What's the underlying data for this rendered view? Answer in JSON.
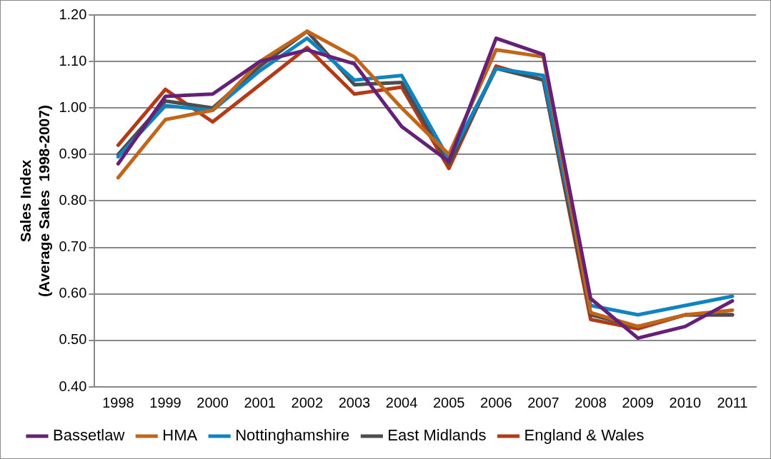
{
  "chart_data": {
    "type": "line",
    "ylabel": "Sales Index\n(Average Sales  1998-2007)",
    "categories": [
      "1998",
      "1999",
      "2000",
      "2001",
      "2002",
      "2003",
      "2004",
      "2005",
      "2006",
      "2007",
      "2008",
      "2009",
      "2010",
      "2011"
    ],
    "series": [
      {
        "name": "Bassetlaw",
        "color": "#652077",
        "values": [
          0.88,
          1.025,
          1.03,
          1.1,
          1.125,
          1.095,
          0.96,
          0.885,
          1.15,
          1.115,
          0.59,
          0.505,
          0.53,
          0.585
        ]
      },
      {
        "name": "HMA",
        "color": "#c0651a",
        "values": [
          0.85,
          0.975,
          0.995,
          1.1,
          1.165,
          1.11,
          1.0,
          0.9,
          1.125,
          1.11,
          0.56,
          0.53,
          0.555,
          0.565
        ]
      },
      {
        "name": "Nottinghamshire",
        "color": "#1084c0",
        "values": [
          0.895,
          1.005,
          0.995,
          1.08,
          1.15,
          1.06,
          1.07,
          0.89,
          1.085,
          1.07,
          0.575,
          0.555,
          0.575,
          0.595
        ]
      },
      {
        "name": "East Midlands",
        "color": "#4d4d4f",
        "values": [
          0.9,
          1.015,
          1.0,
          1.09,
          1.165,
          1.05,
          1.055,
          0.88,
          1.085,
          1.06,
          0.555,
          0.53,
          0.555,
          0.555
        ]
      },
      {
        "name": "England & Wales",
        "color": "#b33a17",
        "values": [
          0.92,
          1.04,
          0.97,
          1.05,
          1.13,
          1.03,
          1.045,
          0.87,
          1.09,
          1.06,
          0.545,
          0.525,
          0.555,
          0.555
        ]
      }
    ],
    "ylim": [
      0.4,
      1.2
    ],
    "yticks": [
      {
        "value": 0.4,
        "label": "0.40"
      },
      {
        "value": 0.5,
        "label": "0.50"
      },
      {
        "value": 0.6,
        "label": "0.60"
      },
      {
        "value": 0.7,
        "label": "0.70"
      },
      {
        "value": 0.8,
        "label": "0.80"
      },
      {
        "value": 0.9,
        "label": "0.90"
      },
      {
        "value": 1.0,
        "label": "1.00"
      },
      {
        "value": 1.1,
        "label": "1.10"
      },
      {
        "value": 1.2,
        "label": "1.20"
      }
    ],
    "grid": "y",
    "legend": "bottom",
    "marker": "none",
    "line_style": "solid"
  }
}
